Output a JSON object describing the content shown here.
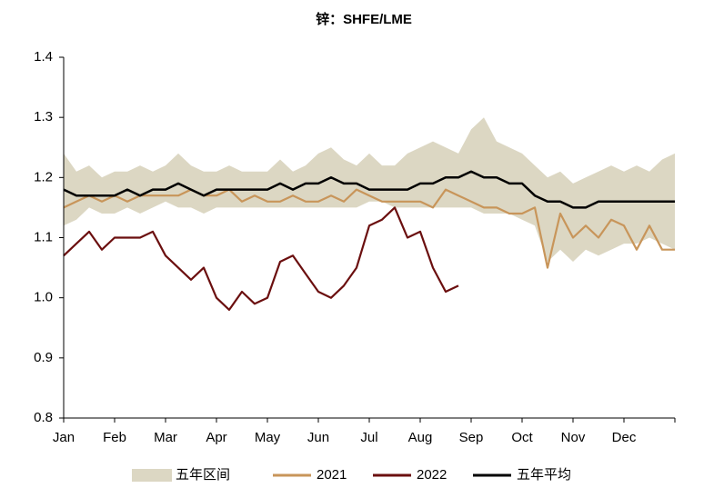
{
  "chart_data": {
    "type": "line",
    "title": "锌：SHFE/LME",
    "categories": [
      "Jan",
      null,
      null,
      null,
      "Feb",
      null,
      null,
      null,
      "Mar",
      null,
      null,
      null,
      "Apr",
      null,
      null,
      null,
      "May",
      null,
      null,
      null,
      "Jun",
      null,
      null,
      null,
      "Jul",
      null,
      null,
      null,
      "Aug",
      null,
      null,
      null,
      "Sep",
      null,
      null,
      null,
      "Oct",
      null,
      null,
      null,
      "Nov",
      null,
      null,
      null,
      "Dec",
      null,
      null,
      null,
      null
    ],
    "series": [
      {
        "name": "五年区间",
        "type": "band",
        "color": "#dcd7c3",
        "high": [
          1.24,
          1.21,
          1.22,
          1.2,
          1.21,
          1.21,
          1.22,
          1.21,
          1.22,
          1.24,
          1.22,
          1.21,
          1.21,
          1.22,
          1.21,
          1.21,
          1.21,
          1.23,
          1.21,
          1.22,
          1.24,
          1.25,
          1.23,
          1.22,
          1.24,
          1.22,
          1.22,
          1.24,
          1.25,
          1.26,
          1.25,
          1.24,
          1.28,
          1.3,
          1.26,
          1.25,
          1.24,
          1.22,
          1.2,
          1.21,
          1.19,
          1.2,
          1.21,
          1.22,
          1.21,
          1.22,
          1.21,
          1.23,
          1.24
        ],
        "low": [
          1.12,
          1.13,
          1.15,
          1.14,
          1.14,
          1.15,
          1.14,
          1.15,
          1.16,
          1.15,
          1.15,
          1.14,
          1.15,
          1.15,
          1.15,
          1.15,
          1.15,
          1.15,
          1.15,
          1.15,
          1.15,
          1.15,
          1.15,
          1.15,
          1.16,
          1.16,
          1.15,
          1.15,
          1.15,
          1.15,
          1.15,
          1.15,
          1.15,
          1.14,
          1.14,
          1.14,
          1.13,
          1.12,
          1.06,
          1.08,
          1.06,
          1.08,
          1.07,
          1.08,
          1.09,
          1.09,
          1.1,
          1.09,
          1.08
        ]
      },
      {
        "name": "2021",
        "color": "#c8955a",
        "values": [
          1.15,
          1.16,
          1.17,
          1.16,
          1.17,
          1.16,
          1.17,
          1.17,
          1.17,
          1.17,
          1.18,
          1.17,
          1.17,
          1.18,
          1.16,
          1.17,
          1.16,
          1.16,
          1.17,
          1.16,
          1.16,
          1.17,
          1.16,
          1.18,
          1.17,
          1.16,
          1.16,
          1.16,
          1.16,
          1.15,
          1.18,
          1.17,
          1.16,
          1.15,
          1.15,
          1.14,
          1.14,
          1.15,
          1.05,
          1.14,
          1.1,
          1.12,
          1.1,
          1.13,
          1.12,
          1.08,
          1.12,
          1.08,
          1.08
        ]
      },
      {
        "name": "2022",
        "color": "#6b0f0f",
        "values": [
          1.07,
          1.09,
          1.11,
          1.08,
          1.1,
          1.1,
          1.1,
          1.11,
          1.07,
          1.05,
          1.03,
          1.05,
          1.0,
          0.98,
          1.01,
          0.99,
          1.0,
          1.06,
          1.07,
          1.04,
          1.01,
          1.0,
          1.02,
          1.05,
          1.12,
          1.13,
          1.15,
          1.1,
          1.11,
          1.05,
          1.01,
          1.02,
          null,
          null,
          null,
          null,
          null,
          null,
          null,
          null,
          null,
          null,
          null,
          null,
          null,
          null,
          null,
          null,
          null
        ]
      },
      {
        "name": "五年平均",
        "color": "#000000",
        "values": [
          1.18,
          1.17,
          1.17,
          1.17,
          1.17,
          1.18,
          1.17,
          1.18,
          1.18,
          1.19,
          1.18,
          1.17,
          1.18,
          1.18,
          1.18,
          1.18,
          1.18,
          1.19,
          1.18,
          1.19,
          1.19,
          1.2,
          1.19,
          1.19,
          1.18,
          1.18,
          1.18,
          1.18,
          1.19,
          1.19,
          1.2,
          1.2,
          1.21,
          1.2,
          1.2,
          1.19,
          1.19,
          1.17,
          1.16,
          1.16,
          1.15,
          1.15,
          1.16,
          1.16,
          1.16,
          1.16,
          1.16,
          1.16,
          1.16
        ]
      }
    ],
    "ylim": [
      0.8,
      1.4
    ],
    "yticks": [
      0.8,
      0.9,
      {
        "value": 1,
        "label": "1.0"
      },
      1.1,
      1.2,
      1.3,
      1.4
    ],
    "grid": false,
    "legend": "bottom"
  }
}
